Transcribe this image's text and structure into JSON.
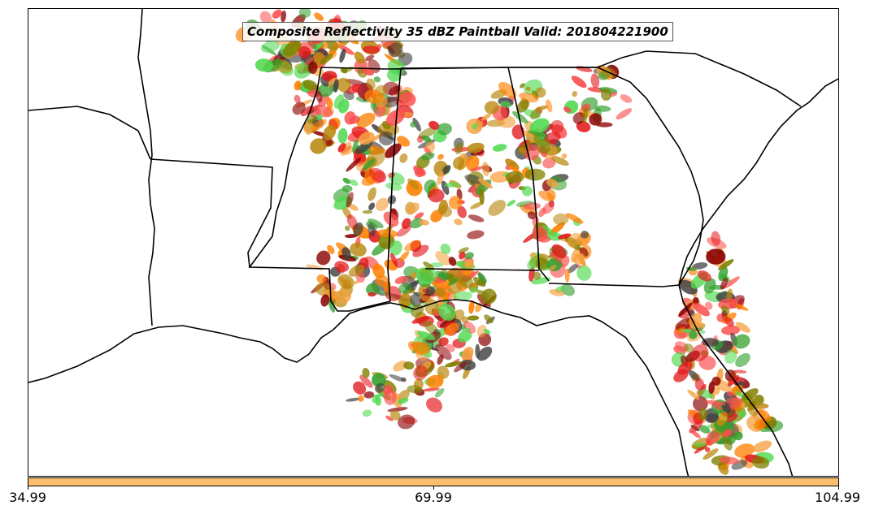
{
  "title": "Composite Reflectivity 35 dBZ Paintball Valid: 201804221900",
  "colorbar": {
    "color": "#fdbf6f",
    "ticks": [
      "34.99",
      "69.99",
      "104.99"
    ]
  },
  "map": {
    "region": "Southeastern United States",
    "borders_color": "#000000",
    "paintball_colors": [
      "#e31a1c",
      "#ff7f00",
      "#33a02c",
      "#808000",
      "#8b0000",
      "#f4a040",
      "#fb4d4d",
      "#4fd94f",
      "#404040",
      "#b8860b"
    ]
  }
}
